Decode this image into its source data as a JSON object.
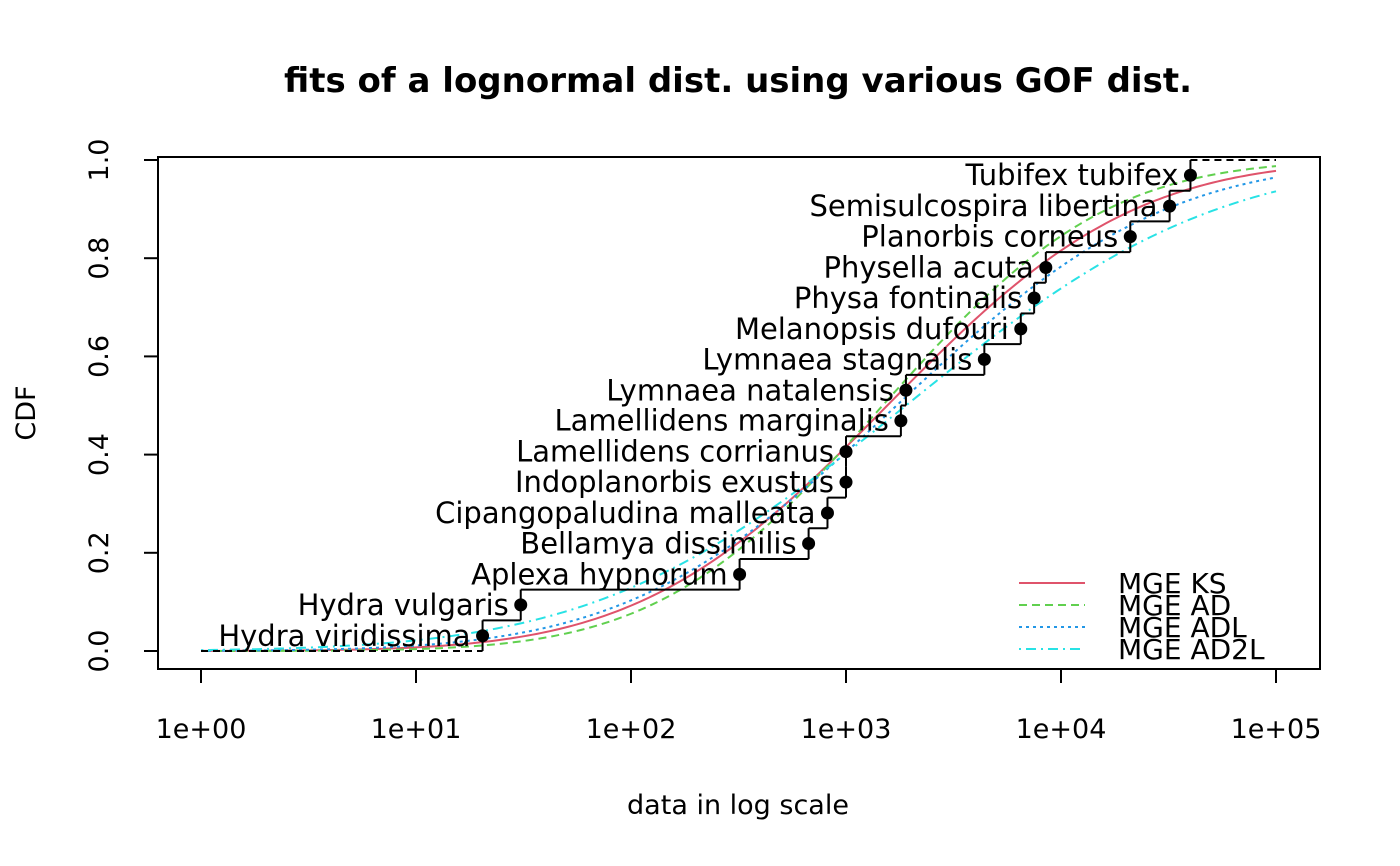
{
  "chart_data": {
    "type": "line",
    "title": "fits of a lognormal dist. using various GOF dist.",
    "xlabel": "data in log scale",
    "ylabel": "CDF",
    "x_scale": "log10",
    "xlim": [
      1,
      100000
    ],
    "ylim": [
      0,
      1
    ],
    "x_ticks": [
      {
        "value": 1,
        "label": "1e+00"
      },
      {
        "value": 10,
        "label": "1e+01"
      },
      {
        "value": 100,
        "label": "1e+02"
      },
      {
        "value": 1000,
        "label": "1e+03"
      },
      {
        "value": 10000,
        "label": "1e+04"
      },
      {
        "value": 100000,
        "label": "1e+05"
      }
    ],
    "y_ticks": [
      {
        "value": 0,
        "label": "0.0"
      },
      {
        "value": 0.2,
        "label": "0.2"
      },
      {
        "value": 0.4,
        "label": "0.4"
      },
      {
        "value": 0.6,
        "label": "0.6"
      },
      {
        "value": 0.8,
        "label": "0.8"
      },
      {
        "value": 1,
        "label": "1.0"
      }
    ],
    "grid": false,
    "legend_position": "bottom-right",
    "empirical": {
      "points": [
        {
          "label": "Hydra viridissima",
          "x": 20.4,
          "y": 0.031
        },
        {
          "label": "Hydra vulgaris",
          "x": 30.7,
          "y": 0.094
        },
        {
          "label": "Aplexa hypnorum",
          "x": 320,
          "y": 0.156
        },
        {
          "label": "Bellamya dissimilis",
          "x": 670,
          "y": 0.219
        },
        {
          "label": "Cipangopaludina malleata",
          "x": 820,
          "y": 0.281
        },
        {
          "label": "Indoplanorbis exustus",
          "x": 1000,
          "y": 0.344
        },
        {
          "label": "Lamellidens corrianus",
          "x": 1000,
          "y": 0.406
        },
        {
          "label": "Lamellidens marginalis",
          "x": 1800,
          "y": 0.469
        },
        {
          "label": "Lymnaea natalensis",
          "x": 1900,
          "y": 0.531
        },
        {
          "label": "Lymnaea stagnalis",
          "x": 4400,
          "y": 0.594
        },
        {
          "label": "Melanopsis dufouri",
          "x": 6500,
          "y": 0.656
        },
        {
          "label": "Physa fontinalis",
          "x": 7500,
          "y": 0.719
        },
        {
          "label": "Physella acuta",
          "x": 8500,
          "y": 0.781
        },
        {
          "label": "Planorbis corneus",
          "x": 21000,
          "y": 0.844
        },
        {
          "label": "Semisulcospira libertina",
          "x": 32000,
          "y": 0.906
        },
        {
          "label": "Tubifex tubifex",
          "x": 40000,
          "y": 0.969
        }
      ]
    },
    "series": [
      {
        "name": "MGE KS",
        "color": "#DF536B",
        "dash": "solid",
        "meanlog": 7.35,
        "sdlog": 2.07
      },
      {
        "name": "MGE AD",
        "color": "#61D04F",
        "dash": "dashed",
        "meanlog": 7.3,
        "sdlog": 1.88
      },
      {
        "name": "MGE ADL",
        "color": "#2297E6",
        "dash": "dotted",
        "meanlog": 7.45,
        "sdlog": 2.25
      },
      {
        "name": "MGE AD2L",
        "color": "#28E2E5",
        "dash": "dotdash",
        "meanlog": 7.55,
        "sdlog": 2.6
      }
    ]
  }
}
